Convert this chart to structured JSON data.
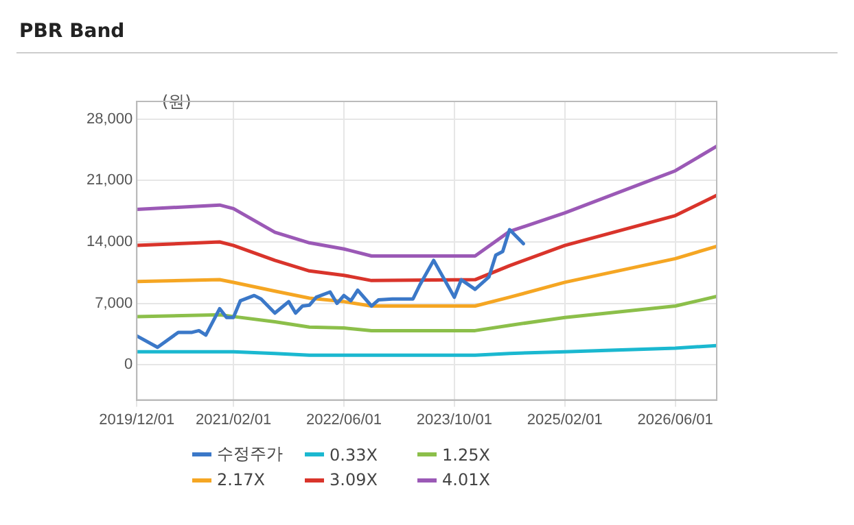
{
  "chart_data": {
    "type": "line",
    "title": "PBR Band",
    "ylabel": "(원)",
    "xlim": [
      "2019-12-01",
      "2026-12-01"
    ],
    "xticks": [
      {
        "value": "2019-12-01",
        "label": "2019/12/01"
      },
      {
        "value": "2021-02-01",
        "label": "2021/02/01"
      },
      {
        "value": "2022-06-01",
        "label": "2022/06/01"
      },
      {
        "value": "2023-10-01",
        "label": "2023/10/01"
      },
      {
        "value": "2025-02-01",
        "label": "2025/02/01"
      },
      {
        "value": "2026-06-01",
        "label": "2026/06/01"
      }
    ],
    "ylim": [
      -4000,
      30000
    ],
    "yticks": [
      {
        "value": 0,
        "label": "0"
      },
      {
        "value": 7000,
        "label": "7,000"
      },
      {
        "value": 14000,
        "label": "14,000"
      },
      {
        "value": 21000,
        "label": "21,000"
      },
      {
        "value": 28000,
        "label": "28,000"
      }
    ],
    "grid": true,
    "legend": "bottom",
    "marker": "none",
    "line_style": "solid",
    "series": [
      {
        "name": "수정주가",
        "color": "#3b78c8",
        "x": [
          "2019-12",
          "2020-03",
          "2020-06",
          "2020-08",
          "2020-09",
          "2020-10",
          "2020-11",
          "2020-12",
          "2021-01",
          "2021-02",
          "2021-03",
          "2021-05",
          "2021-06",
          "2021-08",
          "2021-10",
          "2021-11",
          "2021-12",
          "2022-01",
          "2022-02",
          "2022-04",
          "2022-05",
          "2022-06",
          "2022-07",
          "2022-08",
          "2022-10",
          "2022-11",
          "2023-01",
          "2023-04",
          "2023-05",
          "2023-07",
          "2023-10",
          "2023-11",
          "2024-01",
          "2024-03",
          "2024-04",
          "2024-05",
          "2024-06",
          "2024-07",
          "2024-08"
        ],
        "values": [
          3300,
          2000,
          3700,
          3700,
          3900,
          3400,
          4900,
          6400,
          5400,
          5400,
          7300,
          7900,
          7500,
          5900,
          7200,
          5900,
          6700,
          6800,
          7700,
          8300,
          7000,
          7900,
          7300,
          8500,
          6700,
          7400,
          7500,
          7500,
          9100,
          11900,
          7700,
          9700,
          8600,
          10000,
          12500,
          12900,
          15400,
          14600,
          13800
        ]
      },
      {
        "name": "0.33X",
        "color": "#1bb8d0",
        "x": [
          "2019-12",
          "2020-12",
          "2021-02",
          "2021-08",
          "2022-01",
          "2022-06",
          "2022-10",
          "2024-01",
          "2024-06",
          "2025-02",
          "2026-06",
          "2026-12"
        ],
        "values": [
          1500,
          1500,
          1500,
          1300,
          1100,
          1100,
          1100,
          1100,
          1300,
          1500,
          1900,
          2200
        ]
      },
      {
        "name": "1.25X",
        "color": "#8cbf4a",
        "x": [
          "2019-12",
          "2020-12",
          "2021-02",
          "2021-08",
          "2022-01",
          "2022-06",
          "2022-10",
          "2024-01",
          "2024-06",
          "2025-02",
          "2026-06",
          "2026-12"
        ],
        "values": [
          5500,
          5700,
          5500,
          4900,
          4300,
          4200,
          3900,
          3900,
          4500,
          5400,
          6700,
          7800
        ]
      },
      {
        "name": "2.17X",
        "color": "#f5a623",
        "x": [
          "2019-12",
          "2020-12",
          "2021-02",
          "2021-08",
          "2022-01",
          "2022-06",
          "2022-10",
          "2024-01",
          "2024-06",
          "2025-02",
          "2026-06",
          "2026-12"
        ],
        "values": [
          9500,
          9700,
          9400,
          8400,
          7600,
          7200,
          6700,
          6700,
          7700,
          9400,
          12100,
          13500
        ]
      },
      {
        "name": "3.09X",
        "color": "#d9342b",
        "x": [
          "2019-12",
          "2020-12",
          "2021-02",
          "2021-08",
          "2022-01",
          "2022-06",
          "2022-10",
          "2024-01",
          "2024-06",
          "2025-02",
          "2026-06",
          "2026-12"
        ],
        "values": [
          13600,
          14000,
          13600,
          11900,
          10700,
          10200,
          9600,
          9700,
          11300,
          13600,
          17000,
          19300
        ]
      },
      {
        "name": "4.01X",
        "color": "#9b59b6",
        "x": [
          "2019-12",
          "2020-12",
          "2021-02",
          "2021-08",
          "2022-01",
          "2022-06",
          "2022-10",
          "2024-01",
          "2024-06",
          "2025-02",
          "2026-06",
          "2026-12"
        ],
        "values": [
          17700,
          18200,
          17800,
          15100,
          13900,
          13200,
          12400,
          12400,
          15200,
          17300,
          22100,
          24900
        ]
      }
    ]
  }
}
